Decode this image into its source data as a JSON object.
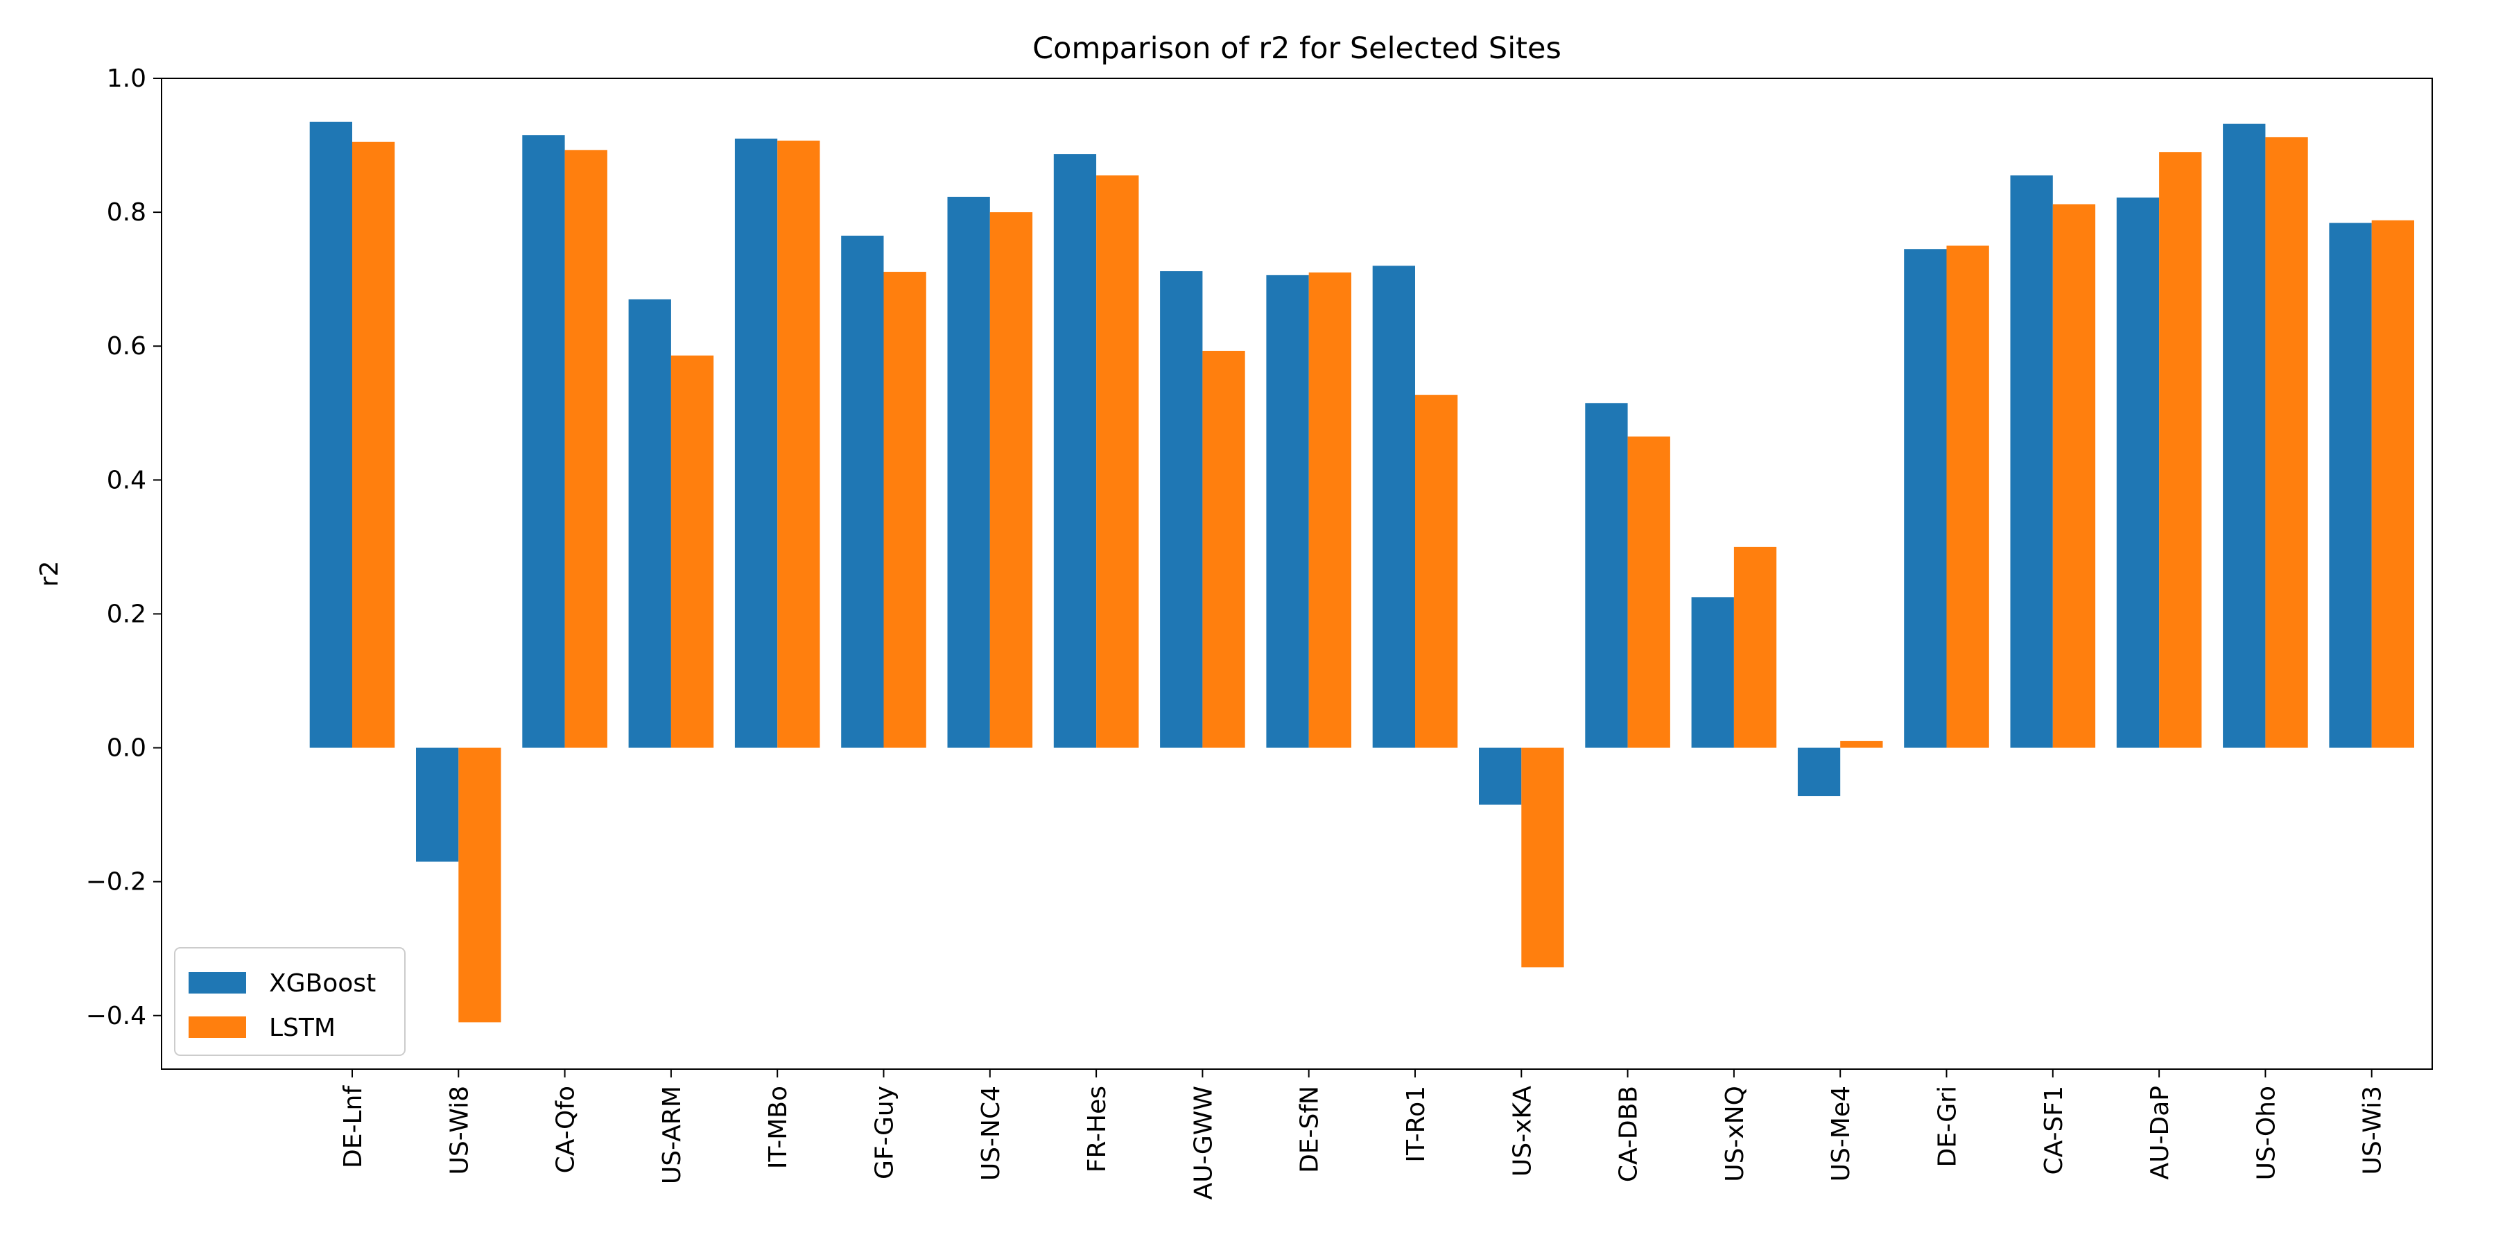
{
  "chart_data": {
    "type": "bar",
    "title": "Comparison of r2 for Selected Sites",
    "xlabel": "",
    "ylabel": "r2",
    "ylim": [
      -0.48,
      1.0
    ],
    "yticks": [
      -0.4,
      -0.2,
      0.0,
      0.2,
      0.4,
      0.6,
      0.8,
      1.0
    ],
    "ytick_labels": [
      "−0.4",
      "−0.2",
      "0.0",
      "0.2",
      "0.4",
      "0.6",
      "0.8",
      "1.0"
    ],
    "grid": false,
    "legend_position": "lower-left",
    "categories": [
      "DE-Lnf",
      "US-Wi8",
      "CA-Qfo",
      "US-ARM",
      "IT-MBo",
      "GF-Guy",
      "US-NC4",
      "FR-Hes",
      "AU-GWW",
      "DE-SfN",
      "IT-Ro1",
      "US-xKA",
      "CA-DBB",
      "US-xNQ",
      "US-Me4",
      "DE-Gri",
      "CA-SF1",
      "AU-DaP",
      "US-Oho",
      "US-Wi3"
    ],
    "series": [
      {
        "name": "XGBoost",
        "color": "#1f77b4",
        "values": [
          0.935,
          -0.17,
          0.915,
          0.67,
          0.91,
          0.765,
          0.823,
          0.887,
          0.712,
          0.706,
          0.72,
          -0.085,
          0.515,
          0.225,
          -0.072,
          0.745,
          0.855,
          0.822,
          0.932,
          0.784
        ]
      },
      {
        "name": "LSTM",
        "color": "#ff7f0e",
        "values": [
          0.905,
          -0.41,
          0.893,
          0.586,
          0.907,
          0.711,
          0.8,
          0.855,
          0.593,
          0.71,
          0.527,
          -0.328,
          0.465,
          0.3,
          0.01,
          0.75,
          0.812,
          0.89,
          0.912,
          0.788
        ]
      }
    ]
  }
}
